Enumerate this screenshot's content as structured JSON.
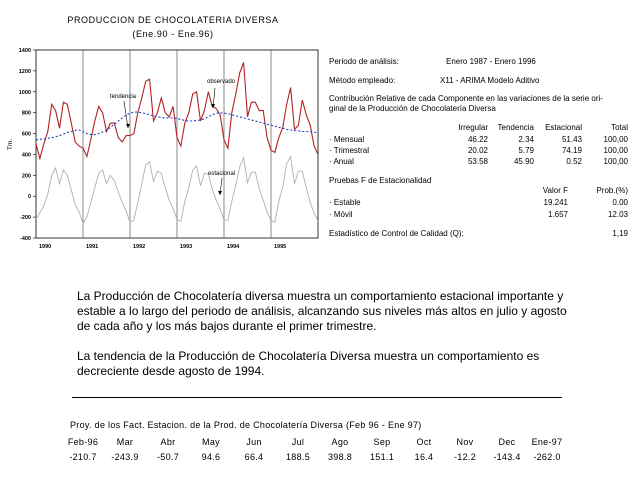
{
  "chart_data": {
    "type": "line",
    "title": "PRODUCCION DE CHOCOLATERIA DIVERSA",
    "subtitle": "(Ene.90 - Ene.96)",
    "ylabel": "Tm.",
    "ylim": [
      -400,
      1400
    ],
    "yticks": [
      "1400",
      "1200",
      "1000",
      "800",
      "600",
      "400",
      "200",
      "0",
      "-200",
      "-400"
    ],
    "ytick_values": [
      1400,
      1200,
      1000,
      800,
      600,
      400,
      200,
      0,
      -200,
      -400
    ],
    "xticks": [
      "1990",
      "1991",
      "1992",
      "1993",
      "1994",
      "1995"
    ],
    "x": [
      1990.0,
      1990.083,
      1990.167,
      1990.25,
      1990.333,
      1990.417,
      1990.5,
      1990.583,
      1990.667,
      1990.75,
      1990.833,
      1990.917,
      1991.0,
      1991.083,
      1991.167,
      1991.25,
      1991.333,
      1991.417,
      1991.5,
      1991.583,
      1991.667,
      1991.75,
      1991.833,
      1991.917,
      1992.0,
      1992.083,
      1992.167,
      1992.25,
      1992.333,
      1992.417,
      1992.5,
      1992.583,
      1992.667,
      1992.75,
      1992.833,
      1992.917,
      1993.0,
      1993.083,
      1993.167,
      1993.25,
      1993.333,
      1993.417,
      1993.5,
      1993.583,
      1993.667,
      1993.75,
      1993.833,
      1993.917,
      1994.0,
      1994.083,
      1994.167,
      1994.25,
      1994.333,
      1994.417,
      1994.5,
      1994.583,
      1994.667,
      1994.75,
      1994.833,
      1994.917,
      1995.0,
      1995.083,
      1995.167,
      1995.25,
      1995.333,
      1995.417,
      1995.5,
      1995.583,
      1995.667,
      1995.75,
      1995.833,
      1995.917,
      1996.0
    ],
    "series": [
      {
        "name": "observado",
        "color": "#b22222",
        "style": "solid",
        "values": [
          500,
          360,
          500,
          620,
          880,
          820,
          650,
          900,
          880,
          700,
          520,
          480,
          460,
          380,
          540,
          720,
          860,
          800,
          620,
          700,
          700,
          560,
          520,
          580,
          580,
          600,
          800,
          940,
          1100,
          1120,
          720,
          800,
          940,
          800,
          760,
          860,
          560,
          480,
          700,
          800,
          980,
          1000,
          720,
          820,
          1000,
          860,
          840,
          780,
          540,
          460,
          800,
          980,
          1180,
          1280,
          760,
          900,
          900,
          820,
          820,
          560,
          440,
          420,
          560,
          660,
          880,
          1040,
          640,
          680,
          920,
          780,
          680,
          480,
          400
        ]
      },
      {
        "name": "tendencia",
        "color": "#1f3fc0",
        "style": "dashed",
        "values": [
          540,
          545,
          550,
          555,
          560,
          570,
          580,
          595,
          610,
          620,
          630,
          635,
          620,
          600,
          590,
          590,
          600,
          615,
          630,
          660,
          690,
          720,
          750,
          775,
          795,
          805,
          805,
          800,
          790,
          780,
          770,
          760,
          755,
          750,
          750,
          750,
          745,
          735,
          725,
          720,
          720,
          725,
          730,
          740,
          760,
          780,
          795,
          800,
          795,
          790,
          780,
          770,
          760,
          750,
          740,
          730,
          720,
          710,
          700,
          690,
          680,
          670,
          660,
          650,
          640,
          635,
          630,
          625,
          620,
          620,
          615,
          612,
          610
        ]
      },
      {
        "name": "estacional",
        "color": "#b0b0b0",
        "style": "solid",
        "values": [
          -220,
          -160,
          -90,
          20,
          200,
          270,
          120,
          250,
          200,
          60,
          -80,
          -150,
          -260,
          -200,
          -60,
          80,
          220,
          250,
          120,
          200,
          150,
          40,
          -60,
          -140,
          -250,
          -230,
          -60,
          120,
          300,
          330,
          140,
          240,
          220,
          80,
          -40,
          -120,
          -220,
          -240,
          -50,
          80,
          250,
          290,
          100,
          220,
          210,
          70,
          -40,
          -120,
          -230,
          -230,
          -50,
          110,
          280,
          370,
          130,
          230,
          230,
          70,
          -40,
          -150,
          -230,
          -250,
          -50,
          90,
          310,
          380,
          120,
          240,
          240,
          80,
          -60,
          -160,
          -240
        ]
      }
    ],
    "annotations": [
      "observado",
      "tendencia",
      "estacional"
    ],
    "grid": "vertical-years"
  },
  "info": {
    "period_label": "Periodo de análisis:",
    "period_value": "Enero 1987 - Enero 1996",
    "method_label": "Método empleado:",
    "method_value": "X11 - ARIMA Modelo Aditivo",
    "contrib_line1": "Contribución Relativa de cada Componente en las variaciones de la serie ori-",
    "contrib_line2": "ginal de la Producción de Chocolatería Diversa",
    "contrib_headers": [
      "Irregular",
      "Tendencia",
      "Estacional",
      "Total"
    ],
    "contrib_rows": [
      {
        "label": "· Mensual",
        "values": [
          "46.22",
          "2.34",
          "51.43",
          "100,00"
        ]
      },
      {
        "label": "· Trimestral",
        "values": [
          "20.02",
          "5.79",
          "74.19",
          "100,00"
        ]
      },
      {
        "label": "· Anual",
        "values": [
          "53.58",
          "45.90",
          "0.52",
          "100,00"
        ]
      }
    ],
    "tests_title": "Pruebas F de Estacionalidad",
    "tests_headers": [
      "Valor F",
      "Prob.(%)"
    ],
    "tests_rows": [
      {
        "label": "· Estable",
        "values": [
          "19.241",
          "0.00"
        ]
      },
      {
        "label": "· Móvil",
        "values": [
          "1.657",
          "12.03"
        ]
      }
    ],
    "quality_label": "Estadístico de Control de Calidad (Q):",
    "quality_value": "1,19"
  },
  "text": {
    "paragraph1": "La Producción de Chocolatería diversa muestra un comportamiento estacional importante y estable a lo largo del periodo de análisis, alcanzando sus niveles  más altos en julio y agosto de cada año y los más bajos durante el primer trimestre.",
    "paragraph2": "La tendencia de la Producción de Chocolatería Diversa muestra un comportamiento  es decreciente desde agosto de 1994."
  },
  "projection": {
    "title": "Proy. de los Fact. Estacion. de la Prod. de Chocolatería Diversa (Feb 96 - Ene 97)",
    "months": [
      "Feb-96",
      "Mar",
      "Abr",
      "May",
      "Jun",
      "Jul",
      "Ago",
      "Sep",
      "Oct",
      "Nov",
      "Dec",
      "Ene-97"
    ],
    "values": [
      "-210.7",
      "-243.9",
      "-50.7",
      "94.6",
      "66.4",
      "188.5",
      "398.8",
      "151.1",
      "16.4",
      "-12.2",
      "-143.4",
      "-262.0"
    ]
  }
}
